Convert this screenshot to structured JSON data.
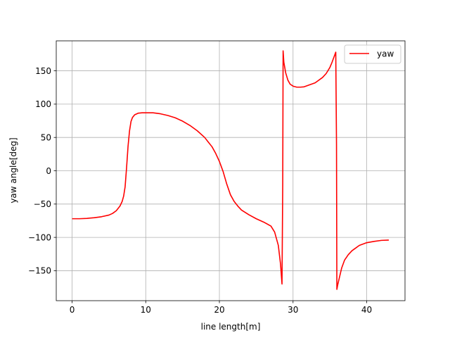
{
  "chart_data": {
    "type": "line",
    "title": "",
    "xlabel": "line length[m]",
    "ylabel": "yaw angle[deg]",
    "xlim": [
      -2.15,
      45.2
    ],
    "ylim": [
      -195,
      195
    ],
    "xticks": [
      0,
      10,
      20,
      30,
      40
    ],
    "yticks": [
      -150,
      -100,
      -50,
      0,
      50,
      100,
      150
    ],
    "xtick_labels": [
      "0",
      "10",
      "20",
      "30",
      "40"
    ],
    "ytick_labels": [
      "−150",
      "−100",
      "−50",
      "0",
      "50",
      "100",
      "150"
    ],
    "grid": true,
    "legend_position": "top-right",
    "series": [
      {
        "name": "yaw",
        "color": "#ff0000",
        "x": [
          0,
          1,
          2,
          3,
          4,
          5,
          5.5,
          6,
          6.5,
          6.8,
          7.0,
          7.2,
          7.4,
          7.6,
          7.8,
          8.0,
          8.2,
          8.5,
          9.0,
          9.5,
          10,
          11,
          12,
          13,
          14,
          15,
          16,
          17,
          18,
          18.5,
          19,
          19.5,
          20,
          20.5,
          21,
          21.5,
          22,
          22.5,
          23,
          24,
          25,
          26,
          27,
          27.5,
          28.0,
          28.3,
          28.5,
          28.6,
          28.65,
          28.75,
          29.0,
          29.3,
          29.6,
          30.0,
          30.5,
          31.0,
          31.5,
          32,
          33,
          34,
          34.5,
          35,
          35.3,
          35.6,
          35.8,
          35.9,
          35.95,
          36.05,
          36.3,
          36.6,
          37.0,
          37.5,
          38,
          39,
          40,
          41,
          42,
          43
        ],
        "y": [
          -72,
          -72,
          -71.5,
          -70.5,
          -69,
          -66.5,
          -64,
          -60,
          -53,
          -46,
          -38,
          -24,
          5,
          37,
          60,
          74,
          80,
          84,
          86.5,
          87,
          87,
          87,
          85.5,
          83,
          79.5,
          74.5,
          68,
          60,
          50,
          43,
          36,
          26,
          14,
          -1,
          -20,
          -36,
          -46,
          -53,
          -59,
          -66,
          -72,
          -77,
          -83,
          -92,
          -112,
          -140,
          -170,
          -20,
          180,
          163,
          147,
          136,
          130,
          127,
          125.5,
          125.5,
          126,
          128,
          132,
          140,
          146,
          155,
          163,
          172,
          178,
          40,
          -178,
          -172,
          -160,
          -146,
          -134,
          -126,
          -120,
          -112,
          -108,
          -106,
          -104.5,
          -104
        ]
      }
    ]
  }
}
